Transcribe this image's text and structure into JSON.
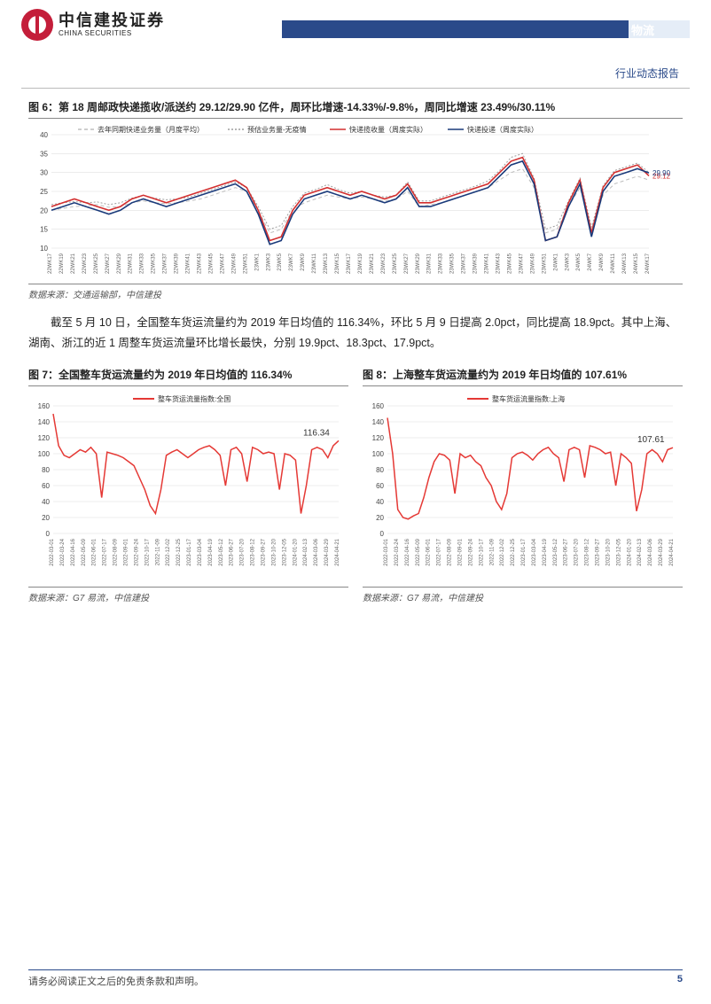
{
  "header": {
    "logo_cn": "中信建投证券",
    "logo_en": "CHINA SECURITIES",
    "category": "物流",
    "sub_header": "行业动态报告"
  },
  "fig6": {
    "title": "图 6：第 18 周邮政快递揽收/派送约 29.12/29.90 亿件，周环比增速-14.33%/-9.8%，周同比增速 23.49%/30.11%",
    "source": "数据来源：交通运输部，中信建投",
    "type": "line",
    "ylim": [
      10,
      40
    ],
    "ytick_step": 5,
    "background_color": "#ffffff",
    "grid_color": "#e0e0e0",
    "legend": [
      {
        "label": "去年同期快递业务量（月度平均）",
        "color": "#bdbdbd",
        "dash": "4,3"
      },
      {
        "label": "预估业务量-无疫情",
        "color": "#9e9e9e",
        "dash": "2,2"
      },
      {
        "label": "快递揽收量（周度实际）",
        "color": "#d32f2f",
        "dash": "none"
      },
      {
        "label": "快递投递（周度实际）",
        "color": "#1a3a7a",
        "dash": "none"
      }
    ],
    "end_labels": [
      {
        "text": "29.12",
        "y": 29.12,
        "color": "#d32f2f"
      },
      {
        "text": "29.90",
        "y": 29.9,
        "color": "#1a3a7a"
      }
    ],
    "xticks": [
      "22WK17",
      "22WK19",
      "22WK21",
      "22WK23",
      "22WK25",
      "22WK27",
      "22WK29",
      "22WK31",
      "22WK33",
      "22WK35",
      "22WK37",
      "22WK39",
      "22WK41",
      "22WK43",
      "22WK45",
      "22WK47",
      "22WK49",
      "22WK51",
      "23WK1",
      "23WK3",
      "23WK5",
      "23WK7",
      "23WK9",
      "23WK11",
      "23WK13",
      "23WK15",
      "23WK17",
      "23WK19",
      "23WK21",
      "23WK23",
      "23WK25",
      "23WK27",
      "23WK29",
      "23WK31",
      "23WK33",
      "23WK35",
      "23WK37",
      "23WK39",
      "23WK41",
      "23WK43",
      "23WK45",
      "23WK47",
      "23WK49",
      "23WK51",
      "24WK1",
      "24WK3",
      "24WK5",
      "24WK7",
      "24WK9",
      "24WK11",
      "24WK13",
      "24WK15",
      "24WK17"
    ],
    "series_red": [
      21,
      22,
      23,
      22,
      21,
      20,
      21,
      23,
      24,
      23,
      22,
      23,
      24,
      25,
      26,
      27,
      28,
      26,
      20,
      12,
      13,
      20,
      24,
      25,
      26,
      25,
      24,
      25,
      24,
      23,
      24,
      27,
      22,
      22,
      23,
      24,
      25,
      26,
      27,
      30,
      33,
      34,
      28,
      12,
      13,
      22,
      28,
      14,
      26,
      30,
      31,
      32,
      29.12
    ],
    "series_navy": [
      20,
      21,
      22,
      21,
      20,
      19,
      20,
      22,
      23,
      22,
      21,
      22,
      23,
      24,
      25,
      26,
      27,
      25,
      19,
      11,
      12,
      19,
      23,
      24,
      25,
      24,
      23,
      24,
      23,
      22,
      23,
      26,
      21,
      21,
      22,
      23,
      24,
      25,
      26,
      29,
      32,
      33,
      27,
      12,
      13,
      21,
      27,
      13,
      25,
      29,
      30,
      31,
      29.9
    ],
    "series_gray": [
      20,
      20.5,
      21,
      21.2,
      21.5,
      20.8,
      21,
      22,
      22.5,
      22,
      21.8,
      22,
      22.5,
      23,
      24,
      25,
      26,
      25,
      20,
      14,
      15,
      20,
      22,
      23,
      24,
      23.5,
      23,
      23.5,
      23,
      22.5,
      23,
      25,
      21,
      21.5,
      22,
      23,
      24,
      25,
      26,
      28,
      30,
      31,
      26,
      14,
      15,
      21,
      26,
      15,
      24,
      27,
      28,
      29,
      28
    ],
    "series_dash": [
      21.5,
      22,
      22.3,
      22,
      22.2,
      21.5,
      22,
      23.2,
      24,
      23.2,
      22.8,
      23,
      23.5,
      24.5,
      25.5,
      26.5,
      27.5,
      26,
      21,
      15,
      16,
      21,
      24.5,
      25.5,
      26.8,
      25.5,
      24.5,
      25,
      24,
      23.5,
      24,
      27.5,
      22.5,
      22.5,
      23.5,
      24.5,
      25.5,
      26.5,
      27.8,
      30.5,
      34,
      35,
      28.5,
      15,
      16,
      22.5,
      28.5,
      15.5,
      26.5,
      30.5,
      31.5,
      32.5,
      30
    ]
  },
  "paragraph": "截至 5 月 10 日，全国整车货运流量约为 2019 年日均值的 116.34%，环比 5 月 9 日提高 2.0pct，同比提高 18.9pct。其中上海、湖南、浙江的近 1 周整车货运流量环比增长最快，分别 19.9pct、18.3pct、17.9pct。",
  "fig7": {
    "title": "图 7：全国整车货运流量约为 2019 年日均值的 116.34%",
    "source": "数据来源：G7 易流，中信建投",
    "type": "line",
    "legend_label": "整车货运流量指数:全国",
    "legend_color": "#e53935",
    "ylim": [
      0,
      160
    ],
    "ytick_step": 20,
    "end_label": "116.34",
    "xticks": [
      "2022-03-01",
      "2022-03-24",
      "2022-04-16",
      "2022-05-09",
      "2022-06-01",
      "2022-07-17",
      "2022-08-09",
      "2022-09-01",
      "2022-09-24",
      "2022-10-17",
      "2022-11-09",
      "2022-12-02",
      "2022-12-25",
      "2023-01-17",
      "2023-03-04",
      "2023-04-19",
      "2023-05-12",
      "2023-06-27",
      "2023-07-20",
      "2023-08-12",
      "2023-09-27",
      "2023-10-20",
      "2023-12-05",
      "2024-01-20",
      "2024-02-13",
      "2024-03-06",
      "2024-03-29",
      "2024-04-21"
    ],
    "values": [
      150,
      110,
      98,
      95,
      100,
      105,
      102,
      108,
      100,
      45,
      102,
      100,
      98,
      95,
      90,
      85,
      70,
      55,
      35,
      25,
      55,
      98,
      102,
      105,
      100,
      95,
      100,
      105,
      108,
      110,
      105,
      98,
      60,
      105,
      108,
      100,
      65,
      108,
      105,
      100,
      102,
      100,
      55,
      100,
      98,
      92,
      25,
      60,
      105,
      108,
      105,
      95,
      110,
      116.34
    ]
  },
  "fig8": {
    "title": "图 8：上海整车货运流量约为 2019 年日均值的 107.61%",
    "source": "数据来源：G7 易流，中信建投",
    "type": "line",
    "legend_label": "整车货运流量指数:上海",
    "legend_color": "#e53935",
    "ylim": [
      0,
      160
    ],
    "ytick_step": 20,
    "end_label": "107.61",
    "xticks": [
      "2022-03-01",
      "2022-03-24",
      "2022-04-16",
      "2022-05-09",
      "2022-06-01",
      "2022-07-17",
      "2022-08-09",
      "2022-09-01",
      "2022-09-24",
      "2022-10-17",
      "2022-11-09",
      "2022-12-02",
      "2022-12-25",
      "2023-01-17",
      "2023-03-04",
      "2023-04-19",
      "2023-05-12",
      "2023-06-27",
      "2023-07-20",
      "2023-08-12",
      "2023-09-27",
      "2023-10-20",
      "2023-12-05",
      "2024-01-20",
      "2024-02-13",
      "2024-03-06",
      "2024-03-29",
      "2024-04-21"
    ],
    "values": [
      145,
      100,
      30,
      20,
      18,
      22,
      25,
      45,
      70,
      90,
      100,
      98,
      92,
      50,
      100,
      95,
      98,
      90,
      85,
      70,
      60,
      40,
      30,
      50,
      95,
      100,
      102,
      98,
      92,
      100,
      105,
      108,
      100,
      95,
      65,
      105,
      108,
      105,
      70,
      110,
      108,
      105,
      100,
      102,
      60,
      100,
      95,
      88,
      28,
      55,
      100,
      105,
      100,
      90,
      105,
      107.61
    ]
  },
  "footer": {
    "disclaimer": "请务必阅读正文之后的免责条款和声明。",
    "page": "5"
  },
  "colors": {
    "brand_red": "#c41e3a",
    "brand_navy": "#2a4a8a",
    "chart_red": "#e53935",
    "grid": "#d9d9d9"
  }
}
